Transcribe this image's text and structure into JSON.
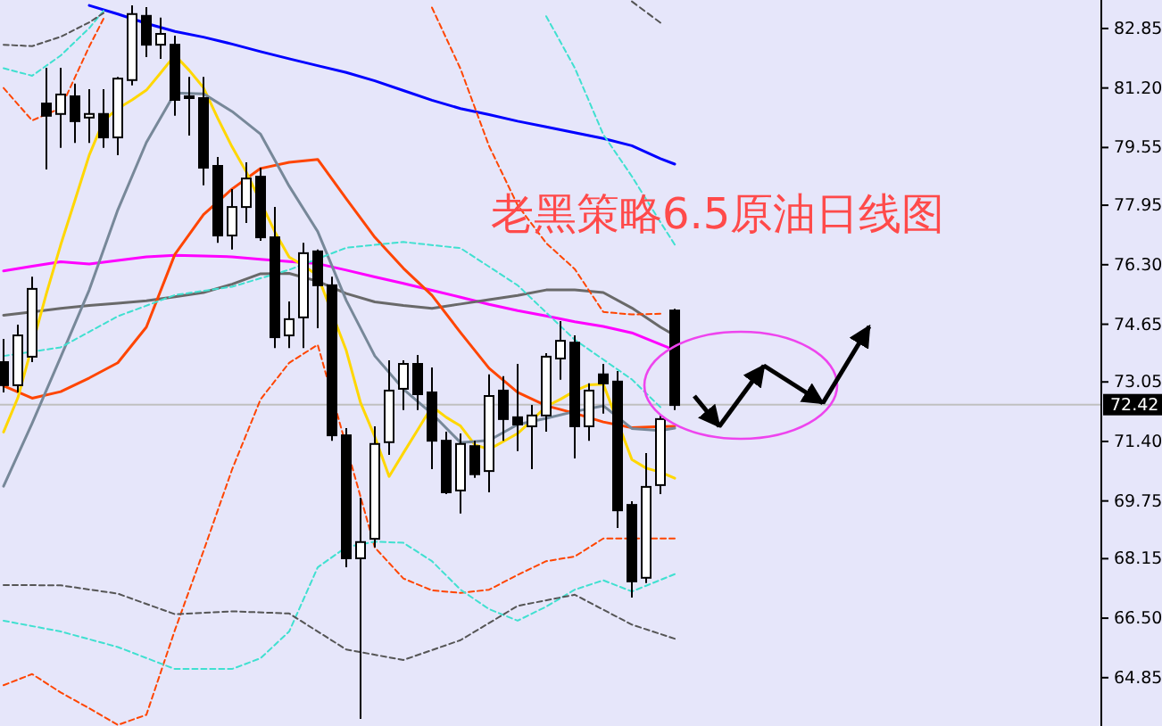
{
  "chart_data": {
    "type": "candlestick",
    "annotations": [
      "老黑策略6.5原油日线图"
    ],
    "categories": [
      null,
      null,
      null,
      null,
      null,
      null,
      null,
      null,
      null,
      null,
      null,
      null,
      null,
      null,
      null,
      null,
      null,
      null,
      null,
      null,
      null,
      null,
      null,
      null,
      null,
      null,
      null,
      null,
      null,
      null,
      null,
      null,
      null,
      null,
      null,
      null,
      null,
      null,
      null,
      null,
      null,
      null,
      null,
      null,
      null,
      null,
      null,
      null
    ],
    "ohlc": [
      [
        73.6,
        74.24,
        72.76,
        72.96
      ],
      [
        72.96,
        74.64,
        72.76,
        74.34
      ],
      [
        73.75,
        75.97,
        73.6,
        75.63
      ],
      [
        80.77,
        81.76,
        78.94,
        80.43
      ],
      [
        80.48,
        81.76,
        79.54,
        81.02
      ],
      [
        80.97,
        81.32,
        79.68,
        80.28
      ],
      [
        80.38,
        81.17,
        79.68,
        80.48
      ],
      [
        80.48,
        81.17,
        79.54,
        79.83
      ],
      [
        79.83,
        81.51,
        79.34,
        81.46
      ],
      [
        81.42,
        83.49,
        81.27,
        83.25
      ],
      [
        83.2,
        83.44,
        82.06,
        82.4
      ],
      [
        82.4,
        83.15,
        82.01,
        82.7
      ],
      [
        82.4,
        82.65,
        80.43,
        80.87
      ],
      [
        80.97,
        81.51,
        79.88,
        80.92
      ],
      [
        80.92,
        81.51,
        78.5,
        78.99
      ],
      [
        79.04,
        79.29,
        76.91,
        77.11
      ],
      [
        77.11,
        78.4,
        76.72,
        77.9
      ],
      [
        77.9,
        79.14,
        77.46,
        78.69
      ],
      [
        78.74,
        78.99,
        76.96,
        77.06
      ],
      [
        77.06,
        77.9,
        73.99,
        74.29
      ],
      [
        74.34,
        75.28,
        73.99,
        74.79
      ],
      [
        74.84,
        76.91,
        73.99,
        76.62
      ],
      [
        76.67,
        76.72,
        74.54,
        75.73
      ],
      [
        75.73,
        75.97,
        71.42,
        71.57
      ],
      [
        71.57,
        71.77,
        67.91,
        68.16
      ],
      [
        68.16,
        69.84,
        63.71,
        68.61
      ],
      [
        68.7,
        71.82,
        68.46,
        71.33
      ],
      [
        71.38,
        73.65,
        71.03,
        72.81
      ],
      [
        72.86,
        73.65,
        72.27,
        73.55
      ],
      [
        73.55,
        73.8,
        72.27,
        72.71
      ],
      [
        72.76,
        73.45,
        70.63,
        71.42
      ],
      [
        71.42,
        71.67,
        69.94,
        69.99
      ],
      [
        70.04,
        71.62,
        69.4,
        71.33
      ],
      [
        71.27,
        71.42,
        70.39,
        70.49
      ],
      [
        70.58,
        73.26,
        69.99,
        72.66
      ],
      [
        72.81,
        73.21,
        71.42,
        72.02
      ],
      [
        72.07,
        73.55,
        71.13,
        71.87
      ],
      [
        71.82,
        72.41,
        70.63,
        72.12
      ],
      [
        72.12,
        73.85,
        71.67,
        73.75
      ],
      [
        73.7,
        74.74,
        73.11,
        74.19
      ],
      [
        74.14,
        74.34,
        70.93,
        71.82
      ],
      [
        71.82,
        73.01,
        71.42,
        72.81
      ],
      [
        73.26,
        73.55,
        72.17,
        73.01
      ],
      [
        73.06,
        73.35,
        69.0,
        69.49
      ],
      [
        69.64,
        69.74,
        67.07,
        67.52
      ],
      [
        67.62,
        71.08,
        67.47,
        70.14
      ],
      [
        70.19,
        72.12,
        69.94,
        72.02
      ],
      [
        75.03,
        75.08,
        72.27,
        72.41
      ]
    ],
    "ylim": [
      63.51,
      83.64
    ],
    "yticks": [
      {
        "value": 82.85,
        "label": "82.85"
      },
      {
        "value": 81.2,
        "label": "81.20"
      },
      {
        "value": 79.55,
        "label": "79.55"
      },
      {
        "value": 77.95,
        "label": "77.95"
      },
      {
        "value": 76.3,
        "label": "76.30"
      },
      {
        "value": 74.65,
        "label": "74.65"
      },
      {
        "value": 73.05,
        "label": "73.05"
      },
      {
        "value": 71.4,
        "label": "71.40"
      },
      {
        "value": 69.75,
        "label": "69.75"
      },
      {
        "value": 68.15,
        "label": "68.15"
      },
      {
        "value": 66.5,
        "label": "66.50"
      },
      {
        "value": 64.85,
        "label": "64.85"
      }
    ],
    "tick_labels": "y",
    "grid": false,
    "ref_lines": [
      {
        "axis": "y",
        "value": 72.42,
        "label": "72.42",
        "color": "#c0c0c0"
      }
    ],
    "series": [
      {
        "type": "line",
        "color": "#0000ff",
        "line_style": "solid",
        "values": [
          null,
          null,
          null,
          null,
          null,
          null,
          83.49,
          null,
          83.25,
          null,
          82.99,
          null,
          82.77,
          null,
          82.61,
          null,
          82.42,
          null,
          82.21,
          null,
          82.01,
          null,
          81.82,
          null,
          81.63,
          null,
          81.4,
          null,
          81.13,
          null,
          80.86,
          null,
          80.63,
          null,
          80.46,
          null,
          80.28,
          null,
          80.12,
          null,
          79.96,
          null,
          79.8,
          null,
          79.6,
          null,
          79.24,
          79.09
        ]
      },
      {
        "type": "line",
        "color": "#ff00ff",
        "line_style": "solid",
        "values": [
          76.13,
          null,
          76.26,
          null,
          76.38,
          null,
          76.32,
          null,
          76.42,
          null,
          76.52,
          null,
          76.56,
          null,
          76.54,
          null,
          76.52,
          null,
          76.45,
          null,
          76.39,
          null,
          76.33,
          null,
          76.15,
          null,
          75.96,
          null,
          75.78,
          null,
          75.59,
          null,
          75.4,
          null,
          75.2,
          null,
          75.03,
          null,
          74.88,
          null,
          74.72,
          null,
          74.59,
          null,
          74.41,
          null,
          74.09,
          73.93
        ]
      },
      {
        "type": "line",
        "color": "#696969",
        "line_style": "solid",
        "values": [
          74.9,
          null,
          74.99,
          null,
          75.09,
          null,
          75.17,
          null,
          75.23,
          null,
          75.3,
          null,
          75.41,
          null,
          75.53,
          null,
          75.76,
          null,
          76.05,
          null,
          76.06,
          null,
          75.84,
          null,
          75.5,
          null,
          75.27,
          null,
          75.17,
          null,
          75.09,
          null,
          75.21,
          null,
          75.33,
          null,
          75.45,
          null,
          75.6,
          null,
          75.6,
          null,
          75.53,
          null,
          75.1,
          null,
          74.57,
          74.34
        ]
      },
      {
        "type": "line",
        "color": "#ff4500",
        "line_style": "solid",
        "values": [
          72.94,
          null,
          72.6,
          null,
          72.78,
          null,
          73.16,
          null,
          73.58,
          null,
          74.57,
          null,
          76.59,
          null,
          77.69,
          null,
          78.4,
          null,
          78.97,
          null,
          79.14,
          null,
          79.22,
          null,
          78.13,
          null,
          77.06,
          null,
          76.2,
          null,
          75.45,
          null,
          74.42,
          null,
          73.43,
          null,
          72.76,
          null,
          72.39,
          null,
          72.18,
          null,
          71.94,
          null,
          71.78,
          null,
          71.81,
          71.82
        ]
      },
      {
        "type": "line",
        "color": "#ffd700",
        "line_style": "solid",
        "values": [
          71.66,
          72.61,
          null,
          75.5,
          76.85,
          78.09,
          79.34,
          80.29,
          80.63,
          80.87,
          81.14,
          81.62,
          82.11,
          81.69,
          81.21,
          80.36,
          79.57,
          78.87,
          null,
          77.21,
          76.51,
          76.28,
          76.0,
          null,
          73.92,
          72.47,
          71.53,
          70.43,
          71.08,
          71.72,
          72.37,
          72.07,
          71.83,
          71.31,
          71.18,
          71.4,
          71.62,
          71.99,
          72.37,
          72.57,
          72.8,
          72.97,
          72.99,
          null,
          70.9,
          70.66,
          70.55,
          70.38
        ]
      },
      {
        "type": "line",
        "color": "#778899",
        "line_style": "solid",
        "values": [
          70.16,
          null,
          71.9,
          null,
          73.74,
          null,
          75.6,
          null,
          77.82,
          null,
          79.69,
          null,
          81.06,
          null,
          81.04,
          null,
          80.55,
          null,
          79.92,
          null,
          78.48,
          null,
          77.22,
          null,
          75.31,
          null,
          73.77,
          null,
          72.85,
          null,
          72.17,
          null,
          71.37,
          null,
          71.43,
          null,
          71.87,
          null,
          72.04,
          null,
          72.23,
          null,
          72.39,
          null,
          71.76,
          null,
          71.7,
          71.77
        ]
      },
      {
        "type": "line",
        "color": "#ff4500",
        "line_style": "dashed",
        "values": [
          81.2,
          null,
          80.3,
          null,
          80.64,
          null,
          82.35,
          83.12,
          null,
          null,
          null,
          null,
          null,
          null,
          null,
          null,
          null,
          null,
          null,
          null,
          null,
          null,
          null,
          null,
          null,
          null,
          null,
          null,
          null,
          null,
          null,
          null,
          null,
          null,
          null,
          null,
          null,
          null,
          null,
          null,
          null,
          null,
          null,
          null,
          null,
          null,
          null,
          null
        ]
      },
      {
        "type": "line",
        "color": "#ff4500",
        "line_style": "dashed",
        "values": [
          null,
          null,
          null,
          null,
          null,
          null,
          null,
          null,
          null,
          null,
          null,
          null,
          null,
          null,
          null,
          null,
          null,
          null,
          null,
          null,
          null,
          null,
          null,
          null,
          null,
          null,
          null,
          null,
          null,
          null,
          83.43,
          null,
          81.73,
          null,
          79.59,
          null,
          77.95,
          null,
          76.9,
          null,
          76.18,
          null,
          74.99,
          null,
          74.92,
          null,
          74.94,
          null
        ]
      },
      {
        "type": "line",
        "color": "#ff4500",
        "line_style": "dashed",
        "values": [
          64.64,
          null,
          64.95,
          null,
          64.44,
          null,
          64.0,
          null,
          63.54,
          null,
          63.82,
          null,
          66.17,
          null,
          68.36,
          null,
          70.62,
          null,
          72.57,
          null,
          73.58,
          null,
          74.08,
          null,
          null,
          null,
          68.46,
          null,
          67.6,
          null,
          67.27,
          null,
          67.2,
          null,
          67.29,
          null,
          67.7,
          null,
          68.08,
          null,
          68.21,
          null,
          68.71,
          null,
          68.71,
          null,
          68.71,
          68.71
        ]
      },
      {
        "type": "line",
        "color": "#40e0d0",
        "line_style": "dashed",
        "values": [
          81.75,
          null,
          81.54,
          null,
          82.1,
          null,
          82.86,
          83.34,
          null,
          null,
          null,
          null,
          null,
          null,
          null,
          null,
          null,
          null,
          null,
          null,
          null,
          null,
          null,
          null,
          null,
          null,
          null,
          null,
          null,
          null,
          null,
          null,
          null,
          null,
          null,
          null,
          null,
          null,
          null,
          null,
          null,
          null,
          null,
          null,
          null,
          null,
          null,
          null
        ]
      },
      {
        "type": "line",
        "color": "#40e0d0",
        "line_style": "dashed",
        "values": [
          null,
          null,
          null,
          null,
          null,
          null,
          null,
          null,
          null,
          null,
          null,
          null,
          null,
          null,
          null,
          null,
          null,
          null,
          null,
          null,
          null,
          null,
          null,
          null,
          null,
          null,
          null,
          null,
          null,
          null,
          null,
          null,
          null,
          null,
          null,
          null,
          null,
          null,
          83.19,
          null,
          81.76,
          null,
          79.91,
          null,
          78.75,
          null,
          77.48,
          76.86
        ]
      },
      {
        "type": "line",
        "color": "#40e0d0",
        "line_style": "dashed",
        "values": [
          73.77,
          null,
          null,
          null,
          74.01,
          null,
          null,
          null,
          74.87,
          null,
          null,
          null,
          75.46,
          null,
          null,
          null,
          75.69,
          null,
          null,
          null,
          76.16,
          null,
          null,
          null,
          76.77,
          null,
          null,
          null,
          76.93,
          null,
          null,
          null,
          76.76,
          null,
          null,
          null,
          75.73,
          null,
          null,
          null,
          74.22,
          null,
          null,
          null,
          73.12,
          null,
          72.35,
          null
        ]
      },
      {
        "type": "line",
        "color": "#40e0d0",
        "line_style": "dashed",
        "values": [
          66.43,
          null,
          null,
          null,
          66.13,
          null,
          null,
          null,
          65.7,
          null,
          null,
          null,
          65.09,
          null,
          null,
          null,
          65.09,
          null,
          65.39,
          null,
          66.13,
          null,
          67.91,
          null,
          68.47,
          null,
          68.62,
          null,
          68.59,
          null,
          68.08,
          null,
          67.29,
          null,
          66.75,
          null,
          66.43,
          null,
          66.82,
          null,
          67.29,
          null,
          67.55,
          null,
          67.24,
          null,
          67.56,
          67.72
        ]
      },
      {
        "type": "line",
        "color": "#555555",
        "line_style": "dashed",
        "values": [
          82.4,
          null,
          82.36,
          null,
          82.62,
          null,
          83.02,
          83.28,
          null,
          null,
          null,
          null,
          null,
          null,
          null,
          null,
          null,
          null,
          null,
          null,
          null,
          null,
          null,
          null,
          null,
          null,
          null,
          null,
          null,
          null,
          null,
          null,
          null,
          null,
          null,
          null,
          null,
          null,
          null,
          null,
          null,
          null,
          null,
          null,
          null,
          null,
          null,
          null
        ]
      },
      {
        "type": "line",
        "color": "#555555",
        "line_style": "dashed",
        "values": [
          null,
          null,
          null,
          null,
          null,
          null,
          null,
          null,
          null,
          null,
          null,
          null,
          null,
          null,
          null,
          null,
          null,
          null,
          null,
          null,
          null,
          null,
          null,
          null,
          null,
          null,
          null,
          null,
          null,
          null,
          null,
          null,
          null,
          null,
          null,
          null,
          null,
          null,
          null,
          null,
          null,
          null,
          null,
          null,
          83.6,
          null,
          83.01,
          null
        ]
      },
      {
        "type": "line",
        "color": "#555555",
        "line_style": "dashed",
        "values": [
          67.42,
          null,
          null,
          null,
          67.41,
          null,
          null,
          null,
          67.18,
          null,
          null,
          null,
          66.61,
          null,
          null,
          null,
          66.69,
          null,
          null,
          null,
          66.63,
          null,
          null,
          null,
          65.63,
          null,
          null,
          null,
          65.34,
          null,
          null,
          null,
          65.89,
          null,
          null,
          null,
          66.84,
          null,
          null,
          null,
          67.15,
          null,
          null,
          null,
          66.32,
          null,
          null,
          65.93
        ]
      }
    ]
  }
}
